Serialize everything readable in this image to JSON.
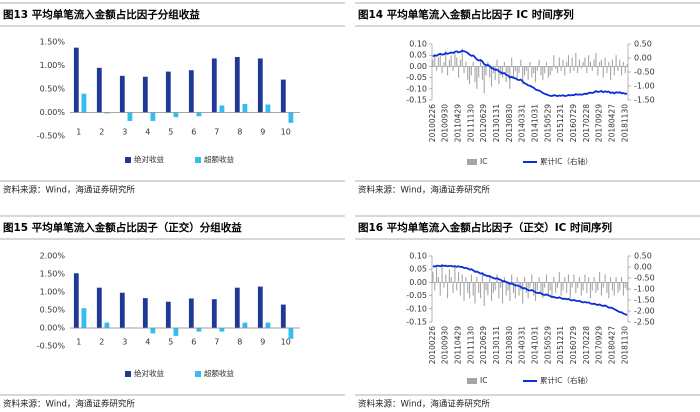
{
  "chart_data": [
    {
      "type": "bar",
      "title": "图13 平均单笔流入金额占比因子分组收益",
      "source": "资料来源：Wind，海通证券研究所",
      "categories": [
        "1",
        "2",
        "3",
        "4",
        "5",
        "6",
        "7",
        "8",
        "9",
        "10"
      ],
      "series": [
        {
          "name": "绝对收益",
          "color": "#1f3a96",
          "values": [
            1.38,
            0.95,
            0.78,
            0.76,
            0.87,
            0.9,
            1.15,
            1.18,
            1.15,
            0.7
          ]
        },
        {
          "name": "超额收益",
          "color": "#33bdf0",
          "values": [
            0.4,
            -0.02,
            -0.18,
            -0.18,
            -0.1,
            -0.08,
            0.15,
            0.18,
            0.17,
            -0.22
          ]
        }
      ],
      "ylim": [
        -0.5,
        1.5
      ],
      "yticks": [
        {
          "value": -0.5,
          "label": "-0.50%"
        },
        {
          "value": 0,
          "label": "0.00%"
        },
        {
          "value": 0.5,
          "label": "0.50%"
        },
        {
          "value": 1,
          "label": "1.00%"
        },
        {
          "value": 1.5,
          "label": "1.50%"
        }
      ]
    },
    {
      "type": "combo",
      "title": "图14 平均单笔流入金额占比因子 IC 时间序列",
      "source": "资料来源：Wind，海通证券研究所",
      "categories": [
        "20100226",
        null,
        null,
        null,
        null,
        null,
        null,
        "20100930",
        null,
        null,
        null,
        null,
        null,
        null,
        "20110429",
        null,
        null,
        null,
        null,
        null,
        null,
        "20111130",
        null,
        null,
        null,
        null,
        null,
        null,
        "20120629",
        null,
        null,
        null,
        null,
        null,
        null,
        "20130131",
        null,
        null,
        null,
        null,
        null,
        null,
        "20130830",
        null,
        null,
        null,
        null,
        null,
        null,
        "20140331",
        null,
        null,
        null,
        null,
        null,
        null,
        "20141031",
        null,
        null,
        null,
        null,
        null,
        null,
        "20150529",
        null,
        null,
        null,
        null,
        null,
        null,
        "20151231",
        null,
        null,
        null,
        null,
        null,
        null,
        "20160729",
        null,
        null,
        null,
        null,
        null,
        null,
        "20170228",
        null,
        null,
        null,
        null,
        null,
        null,
        "20170929",
        null,
        null,
        null,
        null,
        null,
        null,
        "20180427",
        null,
        null,
        null,
        null,
        null,
        null,
        "20181130",
        null
      ],
      "series": [
        {
          "name": "IC",
          "color": "#a6a6a6",
          "values": [
            0.03,
            0.05,
            -0.02,
            0.04,
            0.06,
            -0.03,
            0.02,
            0.07,
            -0.04,
            0.03,
            0.05,
            -0.02,
            0.06,
            0.04,
            -0.05,
            0.03,
            0.08,
            -0.03,
            0.02,
            -0.06,
            -0.08,
            -0.04,
            0.02,
            -0.07,
            -0.1,
            -0.05,
            0.03,
            -0.06,
            -0.12,
            -0.04,
            0.02,
            -0.05,
            -0.09,
            -0.03,
            -0.06,
            0.03,
            -0.08,
            -0.04,
            -0.05,
            0.02,
            -0.07,
            -0.03,
            -0.1,
            0.04,
            -0.05,
            -0.02,
            -0.06,
            -0.03,
            0.03,
            -0.08,
            -0.04,
            -0.02,
            -0.06,
            0.02,
            -0.05,
            -0.03,
            -0.07,
            -0.02,
            0.03,
            -0.04,
            -0.06,
            -0.03,
            0.02,
            -0.05,
            -0.04,
            -0.02,
            0.05,
            -0.01,
            -0.03,
            0.04,
            -0.02,
            0.03,
            -0.04,
            0.02,
            0.05,
            -0.03,
            0.04,
            -0.02,
            0.06,
            -0.03,
            0.03,
            -0.01,
            0.02,
            0.04,
            -0.03,
            0.05,
            0.02,
            -0.02,
            0.03,
            0.06,
            -0.04,
            0.02,
            0.03,
            -0.05,
            0.04,
            -0.03,
            0.02,
            -0.06,
            0.03,
            -0.04,
            0.05,
            -0.02,
            0.03,
            -0.04,
            0.02,
            -0.03,
            0.01
          ]
        },
        {
          "name": "累计IC（右轴）",
          "color": "#0b2fd6",
          "axis": "y2",
          "values": [
            0.05,
            0.1,
            0.08,
            0.12,
            0.15,
            0.12,
            0.13,
            0.18,
            0.15,
            0.17,
            0.2,
            0.18,
            0.22,
            0.24,
            0.2,
            0.22,
            0.26,
            0.24,
            0.22,
            0.18,
            0.12,
            0.08,
            0.09,
            0.03,
            -0.05,
            -0.09,
            -0.07,
            -0.12,
            -0.22,
            -0.26,
            -0.25,
            -0.29,
            -0.36,
            -0.38,
            -0.43,
            -0.41,
            -0.48,
            -0.51,
            -0.55,
            -0.54,
            -0.6,
            -0.62,
            -0.7,
            -0.67,
            -0.71,
            -0.72,
            -0.77,
            -0.79,
            -0.77,
            -0.84,
            -0.9,
            -0.93,
            -0.98,
            -0.99,
            -1.03,
            -1.06,
            -1.12,
            -1.15,
            -1.16,
            -1.2,
            -1.25,
            -1.28,
            -1.3,
            -1.33,
            -1.35,
            -1.36,
            -1.33,
            -1.34,
            -1.36,
            -1.34,
            -1.35,
            -1.33,
            -1.36,
            -1.35,
            -1.32,
            -1.34,
            -1.32,
            -1.33,
            -1.29,
            -1.31,
            -1.3,
            -1.31,
            -1.3,
            -1.27,
            -1.29,
            -1.25,
            -1.24,
            -1.25,
            -1.23,
            -1.18,
            -1.21,
            -1.2,
            -1.18,
            -1.22,
            -1.19,
            -1.21,
            -1.2,
            -1.25,
            -1.23,
            -1.26,
            -1.22,
            -1.24,
            -1.22,
            -1.26,
            -1.25,
            -1.28,
            -1.27
          ]
        }
      ],
      "ylim": [
        -0.15,
        0.1
      ],
      "yticks": [
        {
          "value": 0.1,
          "label": "0.10"
        },
        {
          "value": 0.05,
          "label": "0.05"
        },
        {
          "value": 0,
          "label": "0.00"
        },
        {
          "value": -0.05,
          "label": "-0.05"
        },
        {
          "value": -0.1,
          "label": "-0.10"
        },
        {
          "value": -0.15,
          "label": "-0.15"
        }
      ],
      "y2lim": [
        -1.5,
        0.5
      ],
      "y2ticks": [
        {
          "value": 0.5,
          "label": "0.50"
        },
        {
          "value": 0,
          "label": "0.00"
        },
        {
          "value": -0.5,
          "label": "-0.50"
        },
        {
          "value": -1,
          "label": "-1.00"
        },
        {
          "value": -1.5,
          "label": "-1.50"
        }
      ]
    },
    {
      "type": "bar",
      "title": "图15 平均单笔流入金额占比因子（正交）分组收益",
      "source": "资料来源：Wind，海通证券研究所",
      "categories": [
        "1",
        "2",
        "3",
        "4",
        "5",
        "6",
        "7",
        "8",
        "9",
        "10"
      ],
      "series": [
        {
          "name": "绝对收益",
          "color": "#1f3a96",
          "values": [
            1.52,
            1.12,
            0.98,
            0.83,
            0.73,
            0.82,
            0.8,
            1.12,
            1.15,
            0.65
          ]
        },
        {
          "name": "超额收益",
          "color": "#33bdf0",
          "values": [
            0.55,
            0.15,
            0.01,
            -0.15,
            -0.22,
            -0.1,
            -0.1,
            0.15,
            0.15,
            -0.3
          ]
        }
      ],
      "ylim": [
        -0.5,
        2
      ],
      "yticks": [
        {
          "value": -0.5,
          "label": "-0.50%"
        },
        {
          "value": 0,
          "label": "0.00%"
        },
        {
          "value": 0.5,
          "label": "0.50%"
        },
        {
          "value": 1,
          "label": "1.00%"
        },
        {
          "value": 1.5,
          "label": "1.50%"
        },
        {
          "value": 2,
          "label": "2.00%"
        }
      ]
    },
    {
      "type": "combo",
      "title": "图16 平均单笔流入金额占比因子（正交）IC 时间序列",
      "source": "资料来源：Wind，海通证券研究所",
      "categories": [
        "20100226",
        null,
        null,
        null,
        null,
        null,
        null,
        "20100930",
        null,
        null,
        null,
        null,
        null,
        null,
        "20110429",
        null,
        null,
        null,
        null,
        null,
        null,
        "20111130",
        null,
        null,
        null,
        null,
        null,
        null,
        "20120629",
        null,
        null,
        null,
        null,
        null,
        null,
        "20130131",
        null,
        null,
        null,
        null,
        null,
        null,
        "20130830",
        null,
        null,
        null,
        null,
        null,
        null,
        "20140331",
        null,
        null,
        null,
        null,
        null,
        null,
        "20141031",
        null,
        null,
        null,
        null,
        null,
        null,
        "20150529",
        null,
        null,
        null,
        null,
        null,
        null,
        "20151231",
        null,
        null,
        null,
        null,
        null,
        null,
        "20160729",
        null,
        null,
        null,
        null,
        null,
        null,
        "20170228",
        null,
        null,
        null,
        null,
        null,
        null,
        "20170929",
        null,
        null,
        null,
        null,
        null,
        null,
        "20180427",
        null,
        null,
        null,
        null,
        null,
        null,
        "20181130",
        null
      ],
      "series": [
        {
          "name": "IC",
          "color": "#a6a6a6",
          "values": [
            0.04,
            -0.03,
            0.06,
            0.02,
            -0.05,
            0.07,
            -0.02,
            0.03,
            -0.06,
            0.05,
            0.02,
            -0.04,
            0.06,
            -0.03,
            0.04,
            -0.05,
            0.03,
            -0.07,
            0.02,
            -0.04,
            -0.06,
            0.03,
            -0.05,
            -0.08,
            0.02,
            -0.04,
            -0.06,
            0.03,
            -0.09,
            -0.03,
            -0.05,
            0.02,
            -0.07,
            -0.04,
            -0.03,
            0.03,
            -0.06,
            -0.02,
            -0.08,
            0.02,
            -0.05,
            -0.03,
            -0.07,
            0.03,
            -0.04,
            -0.06,
            0.02,
            -0.05,
            -0.03,
            -0.08,
            0.02,
            -0.04,
            -0.06,
            -0.02,
            0.03,
            -0.05,
            -0.07,
            -0.03,
            0.02,
            -0.04,
            -0.06,
            -0.02,
            0.03,
            -0.05,
            -0.03,
            -0.06,
            0.02,
            -0.04,
            -0.02,
            0.04,
            -0.05,
            -0.03,
            0.02,
            -0.04,
            0.03,
            -0.06,
            -0.02,
            0.03,
            -0.04,
            -0.02,
            0.02,
            -0.05,
            -0.03,
            0.03,
            -0.04,
            0.02,
            -0.06,
            -0.03,
            0.02,
            -0.04,
            -0.03,
            0.04,
            -0.05,
            -0.02,
            0.03,
            -0.04,
            -0.06,
            0.02,
            -0.03,
            -0.05,
            0.02,
            -0.04,
            -0.03,
            0.02,
            -0.05,
            -0.02,
            -0.03
          ]
        },
        {
          "name": "累计IC（右轴）",
          "color": "#0b2fd6",
          "axis": "y2",
          "values": [
            0.04,
            0.02,
            0.05,
            0.06,
            0.03,
            0.07,
            0.05,
            0.06,
            0.03,
            0.05,
            0.05,
            0.02,
            0.04,
            0.01,
            0.03,
            0,
            0.01,
            -0.05,
            -0.04,
            -0.07,
            -0.12,
            -0.1,
            -0.15,
            -0.22,
            -0.21,
            -0.25,
            -0.3,
            -0.28,
            -0.36,
            -0.38,
            -0.42,
            -0.41,
            -0.47,
            -0.5,
            -0.53,
            -0.51,
            -0.56,
            -0.58,
            -0.65,
            -0.64,
            -0.68,
            -0.71,
            -0.77,
            -0.75,
            -0.79,
            -0.84,
            -0.83,
            -0.87,
            -0.9,
            -0.97,
            -0.96,
            -1,
            -1.05,
            -1.07,
            -1.05,
            -1.09,
            -1.15,
            -1.18,
            -1.17,
            -1.2,
            -1.25,
            -1.27,
            -1.25,
            -1.29,
            -1.32,
            -1.37,
            -1.36,
            -1.39,
            -1.41,
            -1.38,
            -1.42,
            -1.45,
            -1.44,
            -1.47,
            -1.45,
            -1.5,
            -1.52,
            -1.5,
            -1.53,
            -1.55,
            -1.54,
            -1.58,
            -1.61,
            -1.59,
            -1.62,
            -1.61,
            -1.66,
            -1.68,
            -1.67,
            -1.7,
            -1.73,
            -1.7,
            -1.75,
            -1.77,
            -1.75,
            -1.79,
            -1.85,
            -1.84,
            -1.87,
            -1.92,
            -1.96,
            -2.01,
            -2.05,
            -2.06,
            -2.12,
            -2.15,
            -2.18
          ]
        }
      ],
      "ylim": [
        -0.15,
        0.1
      ],
      "yticks": [
        {
          "value": 0.1,
          "label": "0.10"
        },
        {
          "value": 0.05,
          "label": "0.05"
        },
        {
          "value": 0,
          "label": "0.00"
        },
        {
          "value": -0.05,
          "label": "-0.05"
        },
        {
          "value": -0.1,
          "label": "-0.10"
        },
        {
          "value": -0.15,
          "label": "-0.15"
        }
      ],
      "y2lim": [
        -2.5,
        0.5
      ],
      "y2ticks": [
        {
          "value": 0.5,
          "label": "0.50"
        },
        {
          "value": 0,
          "label": "0.00"
        },
        {
          "value": -0.5,
          "label": "-0.50"
        },
        {
          "value": -1,
          "label": "-1.00"
        },
        {
          "value": -1.5,
          "label": "-1.50"
        },
        {
          "value": -2,
          "label": "-2.00"
        },
        {
          "value": -2.5,
          "label": "-2.50"
        }
      ]
    }
  ]
}
